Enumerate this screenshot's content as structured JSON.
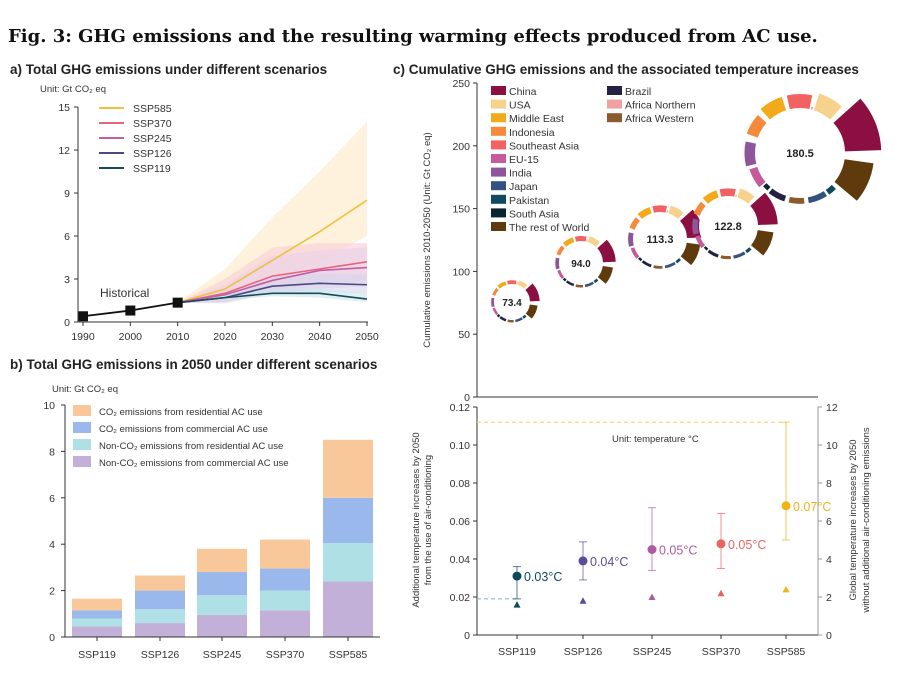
{
  "figure_title": "Fig. 3: GHG emissions and the resulting warming effects produced from AC use.",
  "chart_data": [
    {
      "id": "a",
      "type": "line",
      "title": "a) Total GHG emissions under different scenarios",
      "unit_label": "Unit: Gt CO₂ eq",
      "xlim": [
        1990,
        2050
      ],
      "ylim": [
        0,
        15
      ],
      "x_ticks": [
        "1990",
        "2000",
        "2010",
        "2020",
        "2030",
        "2040",
        "2050"
      ],
      "y_ticks": [
        "0",
        "3",
        "6",
        "9",
        "12",
        "15"
      ],
      "annotation": "Historical",
      "historical": {
        "x": [
          1990,
          2000,
          2010
        ],
        "y": [
          0.4,
          0.8,
          1.35
        ],
        "color": "#111111"
      },
      "series": [
        {
          "name": "SSP585",
          "color": "#f0c040",
          "band_color": "#fde9c4",
          "x": [
            2010,
            2020,
            2030,
            2040,
            2050
          ],
          "y": [
            1.35,
            2.3,
            4.3,
            6.3,
            8.5
          ],
          "upper": [
            1.35,
            3.7,
            7.3,
            10.5,
            14.0
          ],
          "lower": [
            1.35,
            1.8,
            2.8,
            4.2,
            6.0
          ]
        },
        {
          "name": "SSP370",
          "color": "#e8647a",
          "band_color": "#f7cdd6",
          "x": [
            2010,
            2020,
            2030,
            2040,
            2050
          ],
          "y": [
            1.35,
            2.0,
            3.2,
            3.7,
            4.2
          ],
          "upper": [
            1.35,
            3.0,
            5.2,
            5.5,
            5.5
          ],
          "lower": [
            1.35,
            1.4,
            2.2,
            2.6,
            2.9
          ]
        },
        {
          "name": "SSP245",
          "color": "#c060a0",
          "band_color": "#ead0ea",
          "x": [
            2010,
            2020,
            2030,
            2040,
            2050
          ],
          "y": [
            1.35,
            1.9,
            2.9,
            3.6,
            3.8
          ],
          "upper": [
            1.35,
            2.6,
            4.6,
            5.0,
            5.2
          ],
          "lower": [
            1.35,
            1.3,
            2.0,
            2.3,
            2.5
          ]
        },
        {
          "name": "SSP126",
          "color": "#4a4a80",
          "band_color": "#d6d6ec",
          "x": [
            2010,
            2020,
            2030,
            2040,
            2050
          ],
          "y": [
            1.35,
            1.7,
            2.5,
            2.7,
            2.6
          ],
          "upper": [
            1.35,
            2.1,
            3.2,
            3.4,
            3.3
          ],
          "lower": [
            1.35,
            1.4,
            2.0,
            2.1,
            2.0
          ]
        },
        {
          "name": "SSP119",
          "color": "#1a4a5a",
          "band_color": "#c8e6ea",
          "x": [
            2010,
            2020,
            2030,
            2040,
            2050
          ],
          "y": [
            1.35,
            1.7,
            2.0,
            2.0,
            1.6
          ],
          "upper": [
            1.35,
            1.9,
            2.3,
            2.3,
            2.0
          ],
          "lower": [
            1.35,
            1.5,
            1.8,
            1.7,
            1.4
          ]
        }
      ]
    },
    {
      "id": "b",
      "type": "bar",
      "stacked": true,
      "title": "b) Total GHG emissions in 2050 under different scenarios",
      "unit_label": "Unit: Gt CO₂ eq",
      "ylim": [
        0,
        10
      ],
      "y_ticks": [
        "0",
        "2",
        "4",
        "6",
        "8",
        "10"
      ],
      "categories": [
        "SSP119",
        "SSP126",
        "SSP245",
        "SSP370",
        "SSP585"
      ],
      "series": [
        {
          "name": "Non-CO₂ emissions from commercial AC use",
          "color": "#c3b0d8",
          "values": [
            0.45,
            0.6,
            0.95,
            1.15,
            2.4
          ]
        },
        {
          "name": "Non-CO₂ emissions from residential AC use",
          "color": "#aee0e6",
          "values": [
            0.35,
            0.6,
            0.85,
            0.85,
            1.65
          ]
        },
        {
          "name": "CO₂ emissions from commercial AC use",
          "color": "#9ab8ec",
          "values": [
            0.35,
            0.8,
            1.0,
            0.95,
            1.95
          ]
        },
        {
          "name": "CO₂ emissions from residential AC use",
          "color": "#f9c89a",
          "values": [
            0.5,
            0.65,
            1.0,
            1.25,
            2.5
          ]
        }
      ],
      "legend_order": [
        3,
        2,
        1,
        0
      ]
    },
    {
      "id": "c-top",
      "type": "scatter",
      "title": "c) Cumulative GHG emissions and the associated temperature increases",
      "ylabel": "Cumulative emissions 2010-2050 (Unit: Gt CO₂ eq)",
      "ylim": [
        0,
        250
      ],
      "y_ticks": [
        "0",
        "50",
        "100",
        "150",
        "200",
        "250"
      ],
      "bubbles": [
        {
          "category": "SSP119",
          "label": "73.4",
          "value": 73.4
        },
        {
          "category": "SSP126",
          "label": "94.0",
          "value": 94.0
        },
        {
          "category": "SSP245",
          "label": "113.3",
          "value": 113.3
        },
        {
          "category": "SSP370",
          "label": "122.8",
          "value": 122.8
        },
        {
          "category": "SSP585",
          "label": "180.5",
          "value": 180.5
        }
      ],
      "regions": [
        {
          "name": "China",
          "color": "#8c0f42"
        },
        {
          "name": "USA",
          "color": "#f7d28c"
        },
        {
          "name": "Middle East",
          "color": "#f2a91a"
        },
        {
          "name": "Indonesia",
          "color": "#f58a3c"
        },
        {
          "name": "Southeast Asia",
          "color": "#f26262"
        },
        {
          "name": "EU-15",
          "color": "#c65a9a"
        },
        {
          "name": "India",
          "color": "#8f559a"
        },
        {
          "name": "Japan",
          "color": "#34527f"
        },
        {
          "name": "Pakistan",
          "color": "#0f4a60"
        },
        {
          "name": "South Asia",
          "color": "#0b2530"
        },
        {
          "name": "The rest of World",
          "color": "#5e3a0c"
        },
        {
          "name": "Brazil",
          "color": "#232244"
        },
        {
          "name": "Africa Northern",
          "color": "#f0a0a0"
        },
        {
          "name": "Africa Western",
          "color": "#8c5a2c"
        }
      ]
    },
    {
      "id": "c-bottom",
      "type": "scatter",
      "ylabel_left": [
        "Additional temperature increases by 2050",
        "from the use of air-conditioning"
      ],
      "ylabel_right": [
        "Global temperature increases by 2050",
        "without additional air-conditioning emissions"
      ],
      "annotation": "Unit: temperature °C",
      "ylim_left": [
        0,
        0.12
      ],
      "ylim_right": [
        0,
        12
      ],
      "y_ticks_left": [
        "0",
        "0.02",
        "0.04",
        "0.06",
        "0.08",
        "0.10",
        "0.12"
      ],
      "y_ticks_right": [
        "0",
        "2",
        "4",
        "6",
        "8",
        "10",
        "12"
      ],
      "categories": [
        "SSP119",
        "SSP126",
        "SSP245",
        "SSP370",
        "SSP585"
      ],
      "points": [
        {
          "category": "SSP119",
          "value": 0.031,
          "err_low": 0.019,
          "err_high": 0.036,
          "label": "0.03°C",
          "color": "#0f4a5c",
          "global_increase": 1.6
        },
        {
          "category": "SSP126",
          "value": 0.039,
          "err_low": 0.029,
          "err_high": 0.049,
          "label": "0.04°C",
          "color": "#5b4b9a",
          "global_increase": 1.8
        },
        {
          "category": "SSP245",
          "value": 0.045,
          "err_low": 0.034,
          "err_high": 0.067,
          "label": "0.05°C",
          "color": "#b05aa0",
          "global_increase": 2.0
        },
        {
          "category": "SSP370",
          "value": 0.048,
          "err_low": 0.035,
          "err_high": 0.064,
          "label": "0.05°C",
          "color": "#e8645e",
          "global_increase": 2.2
        },
        {
          "category": "SSP585",
          "value": 0.068,
          "err_low": 0.05,
          "err_high": 0.112,
          "label": "0.07°C",
          "color": "#f2b318",
          "global_increase": 2.4
        }
      ]
    }
  ]
}
